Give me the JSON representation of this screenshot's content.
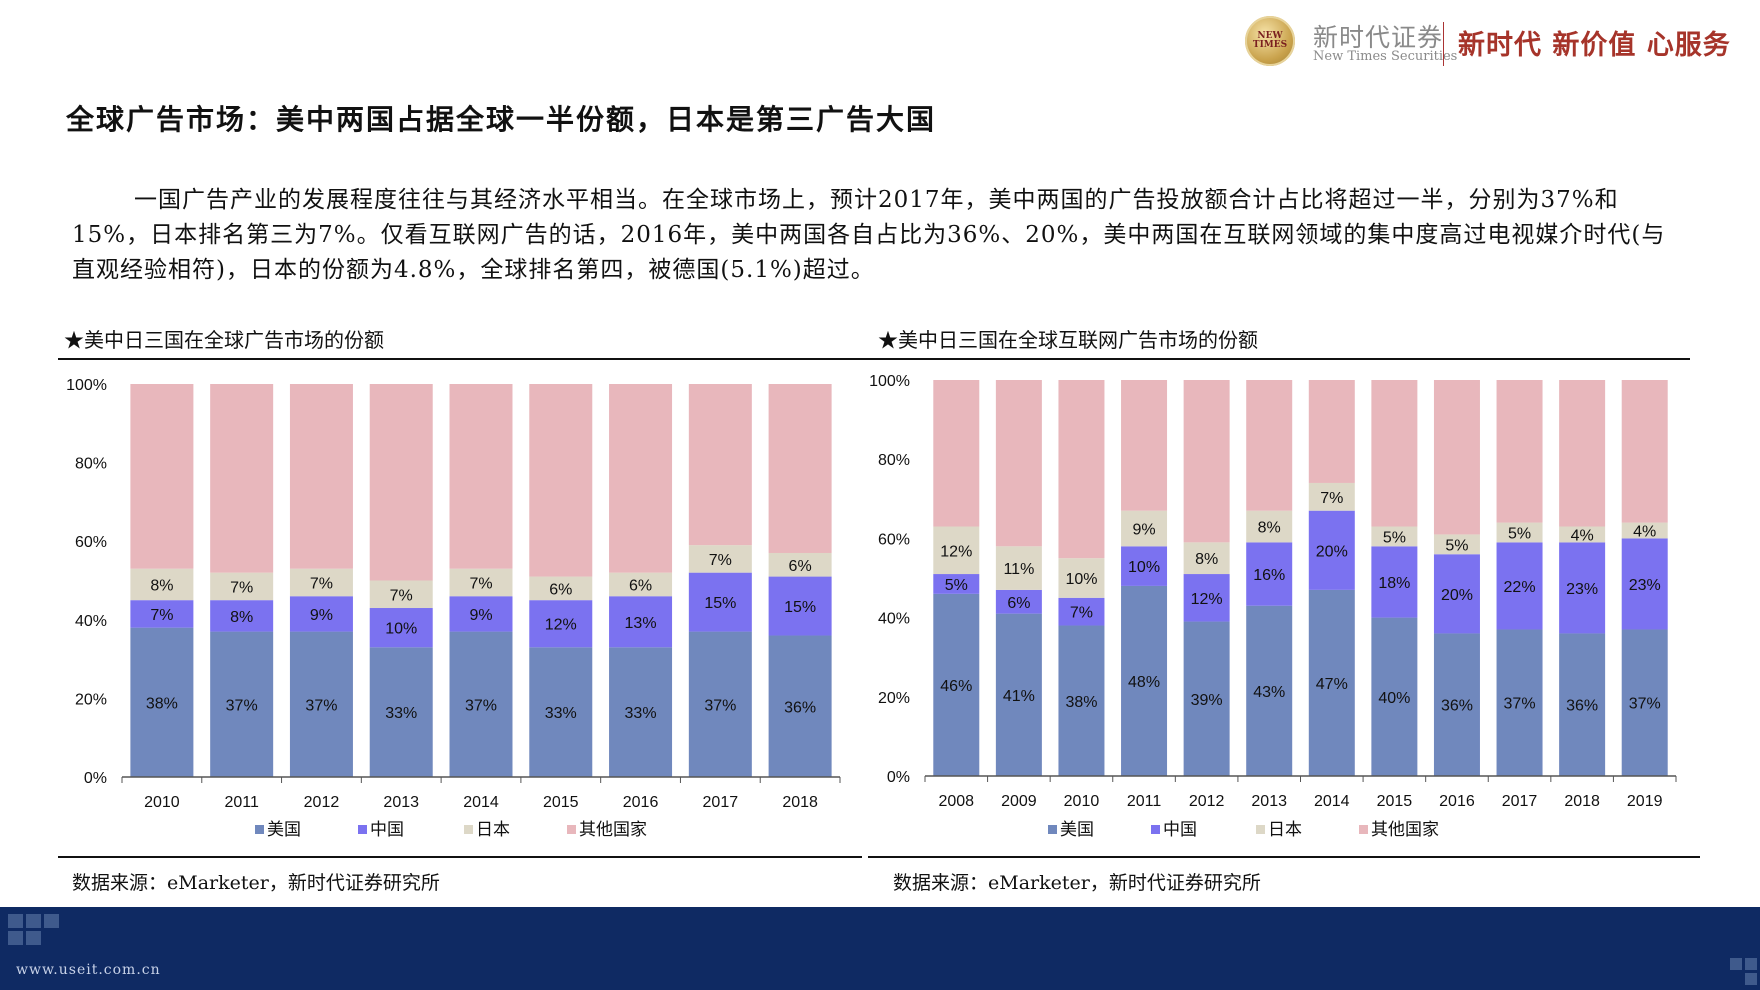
{
  "header": {
    "logo_badge": "NEW TIMES",
    "company_cn": "新时代证券",
    "company_en": "New Times Securities",
    "slogan": "新时代 新价值 心服务"
  },
  "title": "全球广告市场：美中两国占据全球一半份额，日本是第三广告大国",
  "paragraph": "一国广告产业的发展程度往往与其经济水平相当。在全球市场上，预计2017年，美中两国的广告投放额合计占比将超过一半，分别为37%和15%，日本排名第三为7%。仅看互联网广告的话，2016年，美中两国各自占比为36%、20%，美中两国在互联网领域的集中度高过电视媒介时代(与直观经验相符)，日本的份额为4.8%，全球排名第四，被德国(5.1%)超过。",
  "footer_url": "www.useit.com.cn",
  "colors": {
    "us": "#7088bd",
    "cn": "#7b72f0",
    "jp": "#ddd8c7",
    "other": "#e8b7bc",
    "footer": "#0f2a63"
  },
  "chart_data": [
    {
      "type": "bar",
      "stacked": true,
      "caption": "★美中日三国在全球广告市场的份额",
      "source": "数据来源：eMarketer，新时代证券研究所",
      "categories": [
        "2010",
        "2011",
        "2012",
        "2013",
        "2014",
        "2015",
        "2016",
        "2017",
        "2018"
      ],
      "series": [
        {
          "name": "美国",
          "values": [
            38,
            37,
            37,
            33,
            37,
            33,
            33,
            37,
            36
          ],
          "labels": [
            "38%",
            "37%",
            "37%",
            "33%",
            "37%",
            "33%",
            "33%",
            "37%",
            "36%"
          ]
        },
        {
          "name": "中国",
          "values": [
            7,
            8,
            9,
            10,
            9,
            12,
            13,
            15,
            15
          ],
          "labels": [
            "7%",
            "8%",
            "9%",
            "10%",
            "9%",
            "12%",
            "13%",
            "15%",
            "15%"
          ]
        },
        {
          "name": "日本",
          "values": [
            8,
            7,
            7,
            7,
            7,
            6,
            6,
            7,
            6
          ],
          "labels": [
            "8%",
            "7%",
            "7%",
            "7%",
            "7%",
            "6%",
            "6%",
            "7%",
            "6%"
          ]
        },
        {
          "name": "其他国家",
          "values": [
            47,
            48,
            47,
            50,
            47,
            49,
            48,
            41,
            43
          ],
          "labels": []
        }
      ],
      "yticks": [
        "0%",
        "20%",
        "40%",
        "60%",
        "80%",
        "100%"
      ],
      "ylim": [
        0,
        100
      ],
      "legend_position": "bottom"
    },
    {
      "type": "bar",
      "stacked": true,
      "caption": "★美中日三国在全球互联网广告市场的份额",
      "source": "数据来源：eMarketer，新时代证券研究所",
      "categories": [
        "2008",
        "2009",
        "2010",
        "2011",
        "2012",
        "2013",
        "2014",
        "2015",
        "2016",
        "2017",
        "2018",
        "2019"
      ],
      "series": [
        {
          "name": "美国",
          "values": [
            46,
            41,
            38,
            48,
            39,
            43,
            47,
            40,
            36,
            37,
            36,
            37
          ],
          "labels": [
            "46%",
            "41%",
            "38%",
            "48%",
            "39%",
            "43%",
            "47%",
            "40%",
            "36%",
            "37%",
            "36%",
            "37%"
          ]
        },
        {
          "name": "中国",
          "values": [
            5,
            6,
            7,
            10,
            12,
            16,
            20,
            18,
            20,
            22,
            23,
            23
          ],
          "labels": [
            "5%",
            "6%",
            "7%",
            "10%",
            "12%",
            "16%",
            "20%",
            "18%",
            "20%",
            "22%",
            "23%",
            "23%"
          ]
        },
        {
          "name": "日本",
          "values": [
            12,
            11,
            10,
            9,
            8,
            8,
            7,
            5,
            5,
            5,
            4,
            4
          ],
          "labels": [
            "12%",
            "11%",
            "10%",
            "9%",
            "8%",
            "8%",
            "7%",
            "5%",
            "5%",
            "5%",
            "4%",
            "4%"
          ]
        },
        {
          "name": "其他国家",
          "values": [
            37,
            42,
            45,
            33,
            41,
            33,
            26,
            37,
            39,
            36,
            37,
            36
          ],
          "labels": []
        }
      ],
      "yticks": [
        "0%",
        "20%",
        "40%",
        "60%",
        "80%",
        "100%"
      ],
      "ylim": [
        0,
        100
      ],
      "legend_position": "bottom"
    }
  ]
}
